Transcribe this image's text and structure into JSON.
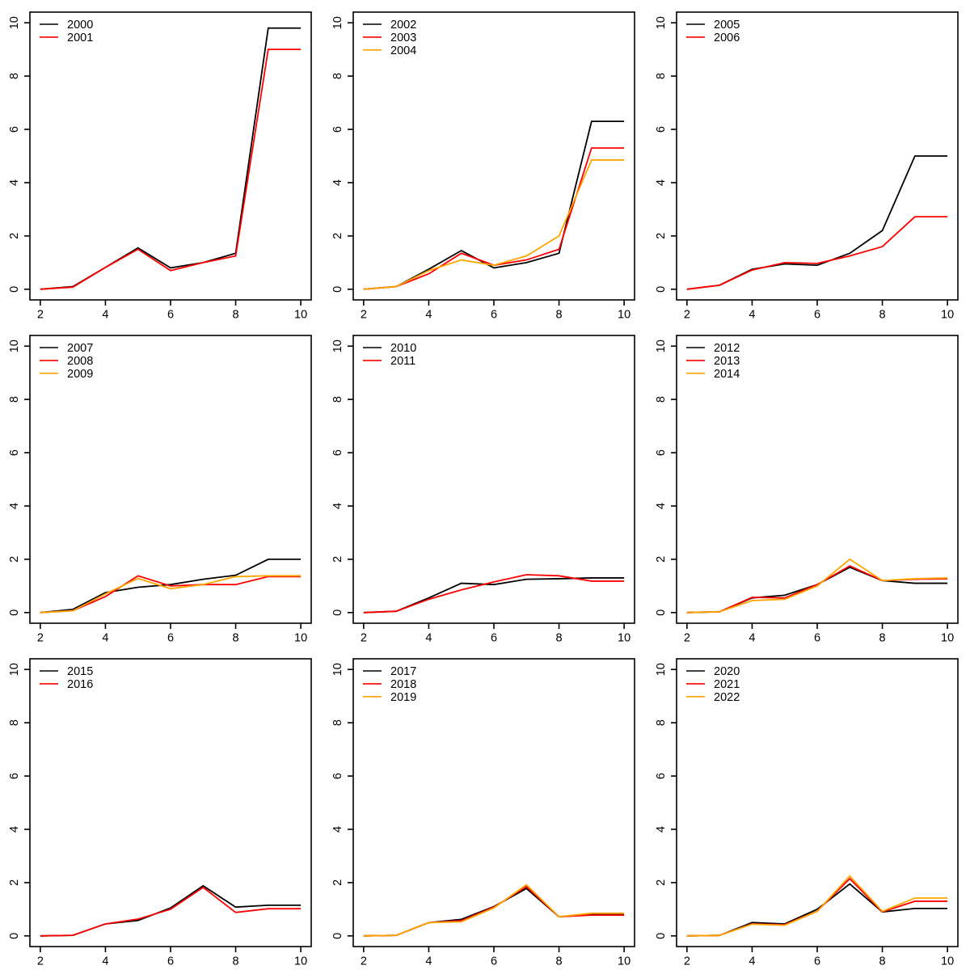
{
  "figure": {
    "layout": "3x3-grid-of-line-charts",
    "background": "#ffffff",
    "axis_color": "#000000",
    "palette": {
      "black": "#000000",
      "red": "#FF0000",
      "orange": "#FFA500"
    }
  },
  "chart_data": [
    {
      "type": "line",
      "panel": 1,
      "title": "",
      "xlabel": "",
      "ylabel": "",
      "x": [
        2,
        3,
        4,
        5,
        6,
        7,
        8,
        9,
        10
      ],
      "xlim": [
        2,
        10
      ],
      "ylim": [
        0,
        10
      ],
      "x_ticks": [
        2,
        4,
        6,
        8,
        10
      ],
      "y_ticks": [
        0,
        2,
        4,
        6,
        8,
        10
      ],
      "grid": false,
      "legend_position": "topleft",
      "series": [
        {
          "name": "2000",
          "color": "#000000",
          "values": [
            0,
            0.1,
            0.82,
            1.55,
            0.8,
            1.0,
            1.35,
            9.8,
            9.8
          ]
        },
        {
          "name": "2001",
          "color": "#FF0000",
          "values": [
            0,
            0.08,
            0.82,
            1.5,
            0.7,
            1.0,
            1.25,
            9.0,
            9.0
          ]
        }
      ]
    },
    {
      "type": "line",
      "panel": 2,
      "title": "",
      "xlabel": "",
      "ylabel": "",
      "x": [
        2,
        3,
        4,
        5,
        6,
        7,
        8,
        9,
        10
      ],
      "xlim": [
        2,
        10
      ],
      "ylim": [
        0,
        10
      ],
      "x_ticks": [
        2,
        4,
        6,
        8,
        10
      ],
      "y_ticks": [
        0,
        2,
        4,
        6,
        8,
        10
      ],
      "grid": false,
      "legend_position": "topleft",
      "series": [
        {
          "name": "2002",
          "color": "#000000",
          "values": [
            0,
            0.1,
            0.75,
            1.45,
            0.8,
            1.0,
            1.35,
            6.3,
            6.3
          ]
        },
        {
          "name": "2003",
          "color": "#FF0000",
          "values": [
            0,
            0.1,
            0.58,
            1.35,
            0.9,
            1.1,
            1.5,
            5.3,
            5.3
          ]
        },
        {
          "name": "2004",
          "color": "#FFA500",
          "values": [
            0,
            0.1,
            0.7,
            1.1,
            0.9,
            1.25,
            2.0,
            4.85,
            4.85
          ]
        }
      ]
    },
    {
      "type": "line",
      "panel": 3,
      "title": "",
      "xlabel": "",
      "ylabel": "",
      "x": [
        2,
        3,
        4,
        5,
        6,
        7,
        8,
        9,
        10
      ],
      "xlim": [
        2,
        10
      ],
      "ylim": [
        0,
        10
      ],
      "x_ticks": [
        2,
        4,
        6,
        8,
        10
      ],
      "y_ticks": [
        0,
        2,
        4,
        6,
        8,
        10
      ],
      "grid": false,
      "legend_position": "topleft",
      "series": [
        {
          "name": "2005",
          "color": "#000000",
          "values": [
            0,
            0.15,
            0.75,
            0.95,
            0.9,
            1.35,
            2.2,
            5.0,
            5.0
          ]
        },
        {
          "name": "2006",
          "color": "#FF0000",
          "values": [
            0,
            0.15,
            0.72,
            1.0,
            0.97,
            1.25,
            1.6,
            2.72,
            2.72
          ]
        }
      ]
    },
    {
      "type": "line",
      "panel": 4,
      "title": "",
      "xlabel": "",
      "ylabel": "",
      "x": [
        2,
        3,
        4,
        5,
        6,
        7,
        8,
        9,
        10
      ],
      "xlim": [
        2,
        10
      ],
      "ylim": [
        0,
        10
      ],
      "x_ticks": [
        2,
        4,
        6,
        8,
        10
      ],
      "y_ticks": [
        0,
        2,
        4,
        6,
        8,
        10
      ],
      "grid": false,
      "legend_position": "topleft",
      "series": [
        {
          "name": "2007",
          "color": "#000000",
          "values": [
            0,
            0.12,
            0.75,
            0.95,
            1.05,
            1.25,
            1.4,
            2.0,
            2.0
          ]
        },
        {
          "name": "2008",
          "color": "#FF0000",
          "values": [
            0,
            0.07,
            0.6,
            1.38,
            1.0,
            1.05,
            1.05,
            1.35,
            1.35
          ]
        },
        {
          "name": "2009",
          "color": "#FFA500",
          "values": [
            0,
            0.07,
            0.7,
            1.28,
            0.9,
            1.05,
            1.35,
            1.38,
            1.38
          ]
        }
      ]
    },
    {
      "type": "line",
      "panel": 5,
      "title": "",
      "xlabel": "",
      "ylabel": "",
      "x": [
        2,
        3,
        4,
        5,
        6,
        7,
        8,
        9,
        10
      ],
      "xlim": [
        2,
        10
      ],
      "ylim": [
        0,
        10
      ],
      "x_ticks": [
        2,
        4,
        6,
        8,
        10
      ],
      "y_ticks": [
        0,
        2,
        4,
        6,
        8,
        10
      ],
      "grid": false,
      "legend_position": "topleft",
      "series": [
        {
          "name": "2010",
          "color": "#000000",
          "values": [
            0,
            0.05,
            0.55,
            1.1,
            1.05,
            1.25,
            1.27,
            1.3,
            1.3
          ]
        },
        {
          "name": "2011",
          "color": "#FF0000",
          "values": [
            0,
            0.05,
            0.5,
            0.85,
            1.15,
            1.42,
            1.38,
            1.18,
            1.18
          ]
        }
      ]
    },
    {
      "type": "line",
      "panel": 6,
      "title": "",
      "xlabel": "",
      "ylabel": "",
      "x": [
        2,
        3,
        4,
        5,
        6,
        7,
        8,
        9,
        10
      ],
      "xlim": [
        2,
        10
      ],
      "ylim": [
        0,
        10
      ],
      "x_ticks": [
        2,
        4,
        6,
        8,
        10
      ],
      "y_ticks": [
        0,
        2,
        4,
        6,
        8,
        10
      ],
      "grid": false,
      "legend_position": "topleft",
      "series": [
        {
          "name": "2012",
          "color": "#000000",
          "values": [
            0,
            0.03,
            0.55,
            0.65,
            1.05,
            1.7,
            1.2,
            1.1,
            1.1
          ]
        },
        {
          "name": "2013",
          "color": "#FF0000",
          "values": [
            0,
            0.03,
            0.57,
            0.55,
            1.05,
            1.75,
            1.2,
            1.25,
            1.27
          ]
        },
        {
          "name": "2014",
          "color": "#FFA500",
          "values": [
            0,
            0.03,
            0.45,
            0.5,
            1.0,
            2.0,
            1.2,
            1.27,
            1.3
          ]
        }
      ]
    },
    {
      "type": "line",
      "panel": 7,
      "title": "",
      "xlabel": "",
      "ylabel": "",
      "x": [
        2,
        3,
        4,
        5,
        6,
        7,
        8,
        9,
        10
      ],
      "xlim": [
        2,
        10
      ],
      "ylim": [
        0,
        10
      ],
      "x_ticks": [
        2,
        4,
        6,
        8,
        10
      ],
      "y_ticks": [
        0,
        2,
        4,
        6,
        8,
        10
      ],
      "grid": false,
      "legend_position": "topleft",
      "series": [
        {
          "name": "2015",
          "color": "#000000",
          "values": [
            0,
            0.02,
            0.45,
            0.58,
            1.05,
            1.88,
            1.08,
            1.15,
            1.15
          ]
        },
        {
          "name": "2016",
          "color": "#FF0000",
          "values": [
            0,
            0.02,
            0.45,
            0.63,
            1.0,
            1.82,
            0.88,
            1.02,
            1.02
          ]
        }
      ]
    },
    {
      "type": "line",
      "panel": 8,
      "title": "",
      "xlabel": "",
      "ylabel": "",
      "x": [
        2,
        3,
        4,
        5,
        6,
        7,
        8,
        9,
        10
      ],
      "xlim": [
        2,
        10
      ],
      "ylim": [
        0,
        10
      ],
      "x_ticks": [
        2,
        4,
        6,
        8,
        10
      ],
      "y_ticks": [
        0,
        2,
        4,
        6,
        8,
        10
      ],
      "grid": false,
      "legend_position": "topleft",
      "series": [
        {
          "name": "2017",
          "color": "#000000",
          "values": [
            0,
            0.02,
            0.5,
            0.62,
            1.1,
            1.78,
            0.72,
            0.8,
            0.8
          ]
        },
        {
          "name": "2018",
          "color": "#FF0000",
          "values": [
            0,
            0.02,
            0.5,
            0.57,
            1.08,
            1.85,
            0.72,
            0.78,
            0.78
          ]
        },
        {
          "name": "2019",
          "color": "#FFA500",
          "values": [
            0,
            0.02,
            0.5,
            0.53,
            1.05,
            1.92,
            0.72,
            0.85,
            0.85
          ]
        }
      ]
    },
    {
      "type": "line",
      "panel": 9,
      "title": "",
      "xlabel": "",
      "ylabel": "",
      "x": [
        2,
        3,
        4,
        5,
        6,
        7,
        8,
        9,
        10
      ],
      "xlim": [
        2,
        10
      ],
      "ylim": [
        0,
        10
      ],
      "x_ticks": [
        2,
        4,
        6,
        8,
        10
      ],
      "y_ticks": [
        0,
        2,
        4,
        6,
        8,
        10
      ],
      "grid": false,
      "legend_position": "topleft",
      "series": [
        {
          "name": "2020",
          "color": "#000000",
          "values": [
            0,
            0.02,
            0.5,
            0.45,
            1.0,
            1.95,
            0.9,
            1.03,
            1.03
          ]
        },
        {
          "name": "2021",
          "color": "#FF0000",
          "values": [
            0,
            0.02,
            0.45,
            0.42,
            0.93,
            2.15,
            0.9,
            1.3,
            1.3
          ]
        },
        {
          "name": "2022",
          "color": "#FFA500",
          "values": [
            0,
            0.02,
            0.44,
            0.4,
            0.92,
            2.25,
            0.92,
            1.42,
            1.42
          ]
        }
      ]
    }
  ]
}
